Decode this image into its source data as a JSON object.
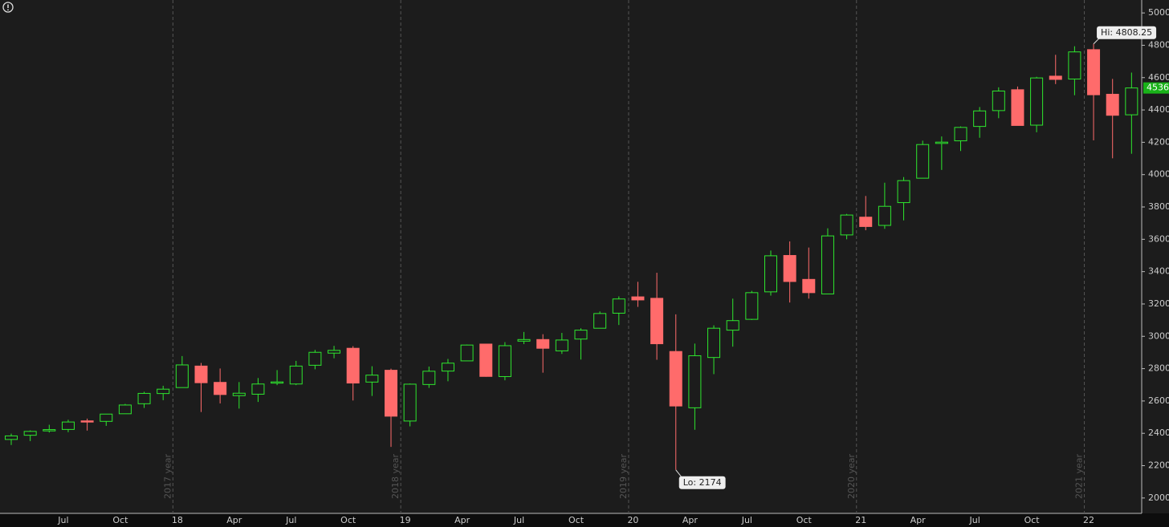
{
  "chart_data": {
    "type": "candlestick",
    "categories": [
      null,
      null,
      null,
      "Jul",
      null,
      null,
      "Oct",
      null,
      null,
      "18",
      null,
      null,
      "Apr",
      null,
      null,
      "Jul",
      null,
      null,
      "Oct",
      null,
      null,
      "19",
      null,
      null,
      "Apr",
      null,
      null,
      "Jul",
      null,
      null,
      "Oct",
      null,
      null,
      "20",
      null,
      null,
      "Apr",
      null,
      null,
      "Jul",
      null,
      null,
      "Oct",
      null,
      null,
      "21",
      null,
      null,
      "Apr",
      null,
      null,
      "Jul",
      null,
      null,
      "Oct",
      null,
      null,
      "22",
      null,
      null
    ],
    "open": [
      2362,
      2388,
      2415,
      2424,
      2477,
      2474,
      2521,
      2583,
      2646,
      2683,
      2816,
      2715,
      2633,
      2642,
      2718,
      2705,
      2821,
      2896,
      2926,
      2717,
      2790,
      2476,
      2702,
      2785,
      2848,
      2952,
      2751,
      2970,
      2980,
      2910,
      2983,
      3050,
      3143,
      3244,
      3235,
      2906,
      2558,
      2869,
      3038,
      3105,
      3275,
      3500,
      3352,
      3262,
      3627,
      3737,
      3686,
      3827,
      3978,
      4193,
      4209,
      4298,
      4396,
      4525,
      4306,
      4609,
      4591,
      4773,
      4497,
      4370
    ],
    "high": [
      2398,
      2418,
      2453,
      2484,
      2491,
      2519,
      2582,
      2657,
      2694,
      2878,
      2835,
      2801,
      2717,
      2742,
      2791,
      2848,
      2916,
      2941,
      2939,
      2815,
      2800,
      2708,
      2813,
      2860,
      2949,
      2954,
      2964,
      3027,
      3013,
      3021,
      3050,
      3154,
      3247,
      3337,
      3393,
      3136,
      2955,
      3068,
      3233,
      3281,
      3530,
      3587,
      3549,
      3668,
      3757,
      3868,
      3950,
      3985,
      4210,
      4236,
      4298,
      4418,
      4540,
      4545,
      4605,
      4741,
      4794,
      4808.25,
      4592,
      4631
    ],
    "low": [
      2328,
      2352,
      2405,
      2407,
      2417,
      2446,
      2520,
      2557,
      2605,
      2682,
      2532,
      2585,
      2553,
      2594,
      2698,
      2698,
      2796,
      2864,
      2603,
      2631,
      2316,
      2443,
      2681,
      2722,
      2848,
      2750,
      2728,
      2952,
      2775,
      2891,
      2856,
      3050,
      3070,
      3182,
      2855,
      2174,
      2422,
      2766,
      2936,
      3101,
      3252,
      3209,
      3233,
      3262,
      3600,
      3656,
      3665,
      3717,
      3978,
      4029,
      4146,
      4228,
      4349,
      4306,
      4262,
      4560,
      4491,
      4212,
      4101,
      4129
    ],
    "close": [
      2384,
      2412,
      2423,
      2470,
      2471,
      2519,
      2575,
      2647,
      2673,
      2823,
      2713,
      2640,
      2648,
      2705,
      2718,
      2816,
      2901,
      2913,
      2711,
      2760,
      2506,
      2704,
      2784,
      2834,
      2946,
      2752,
      2942,
      2980,
      2926,
      2977,
      3038,
      3141,
      3231,
      3225,
      2954,
      2569,
      2880,
      3050,
      3097,
      3270,
      3498,
      3339,
      3270,
      3621,
      3750,
      3679,
      3804,
      3963,
      4186,
      4201,
      4292,
      4394,
      4517,
      4304,
      4598,
      4589,
      4759,
      4494,
      4367,
      4536
    ],
    "up_color": "#2ee62e",
    "down_color": "#ff6b6b",
    "ylim": [
      1900,
      5080
    ],
    "yticks": [
      2000,
      2200,
      2400,
      2600,
      2800,
      3000,
      3200,
      3400,
      3600,
      3800,
      4000,
      4200,
      4400,
      4600,
      4800,
      5000
    ],
    "year_markers": [
      "2017 year",
      "2018 year",
      "2019 year",
      "2020 year",
      "2021 year"
    ],
    "hi_label": "Hi: 4808.25",
    "lo_label": "Lo: 2174",
    "last_price": 4536
  }
}
